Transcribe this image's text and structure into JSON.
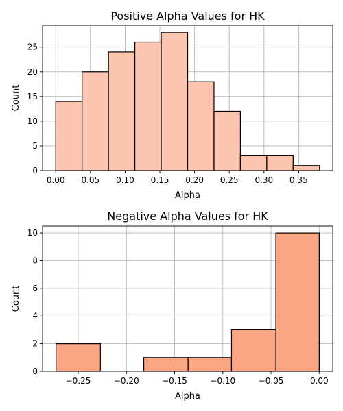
{
  "chart_data": [
    {
      "type": "bar",
      "title": "Positive Alpha Values for HK",
      "xlabel": "Alpha",
      "ylabel": "Count",
      "bin_edges": [
        0.0,
        0.038,
        0.076,
        0.114,
        0.152,
        0.19,
        0.228,
        0.266,
        0.304,
        0.342,
        0.38
      ],
      "values": [
        14,
        20,
        24,
        26,
        28,
        18,
        12,
        3,
        3,
        1
      ],
      "xlim": [
        -0.019,
        0.399
      ],
      "ylim": [
        0,
        29.4
      ],
      "xticks": [
        0.0,
        0.05,
        0.1,
        0.15,
        0.2,
        0.25,
        0.3,
        0.35
      ],
      "xtick_labels": [
        "0.00",
        "0.05",
        "0.10",
        "0.15",
        "0.20",
        "0.25",
        "0.30",
        "0.35"
      ],
      "yticks": [
        0,
        5,
        10,
        15,
        20,
        25
      ],
      "ytick_labels": [
        "0",
        "5",
        "10",
        "15",
        "20",
        "25"
      ],
      "bar_color": "#fdc4b0",
      "edge_color": "#000000",
      "grid": true
    },
    {
      "type": "bar",
      "title": "Negative Alpha Values for HK",
      "xlabel": "Alpha",
      "ylabel": "Count",
      "bin_edges": [
        -0.273,
        -0.227,
        -0.182,
        -0.136,
        -0.091,
        -0.045,
        0.0
      ],
      "values": [
        2,
        0,
        1,
        1,
        3,
        10
      ],
      "xlim": [
        -0.287,
        0.014
      ],
      "ylim": [
        0,
        10.5
      ],
      "xticks": [
        -0.25,
        -0.2,
        -0.15,
        -0.1,
        -0.05,
        0.0
      ],
      "xtick_labels": [
        "−0.25",
        "−0.20",
        "−0.15",
        "−0.10",
        "−0.05",
        "0.00"
      ],
      "yticks": [
        0,
        2,
        4,
        6,
        8,
        10
      ],
      "ytick_labels": [
        "0",
        "2",
        "4",
        "6",
        "8",
        "10"
      ],
      "bar_color": "#fca684",
      "edge_color": "#000000",
      "grid": true
    }
  ]
}
